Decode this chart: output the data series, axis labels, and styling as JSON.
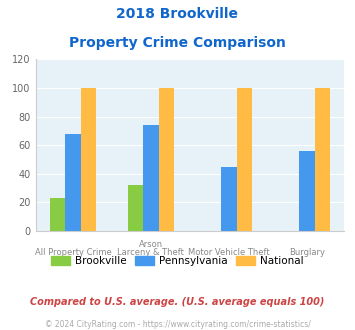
{
  "title_line1": "2018 Brookville",
  "title_line2": "Property Crime Comparison",
  "cat_labels_row1": [
    "All Property Crime",
    "Arson",
    "Motor Vehicle Theft",
    "Burglary"
  ],
  "cat_labels_row2": [
    "",
    "Larceny & Theft",
    "",
    ""
  ],
  "brookville": [
    23,
    32,
    0,
    0
  ],
  "pennsylvania": [
    68,
    74,
    45,
    56
  ],
  "national": [
    100,
    100,
    100,
    100
  ],
  "colors": {
    "brookville": "#88cc44",
    "pennsylvania": "#4499ee",
    "national": "#ffbb44"
  },
  "ylim": [
    0,
    120
  ],
  "yticks": [
    0,
    20,
    40,
    60,
    80,
    100,
    120
  ],
  "title_color": "#1166cc",
  "axis_bg": "#e6f2f7",
  "fig_bg": "#ffffff",
  "footnote": "Compared to U.S. average. (U.S. average equals 100)",
  "copyright": "© 2024 CityRating.com - https://www.cityrating.com/crime-statistics/",
  "footnote_color": "#cc4444",
  "copyright_color": "#aaaaaa",
  "legend_labels": [
    "Brookville",
    "Pennsylvania",
    "National"
  ]
}
